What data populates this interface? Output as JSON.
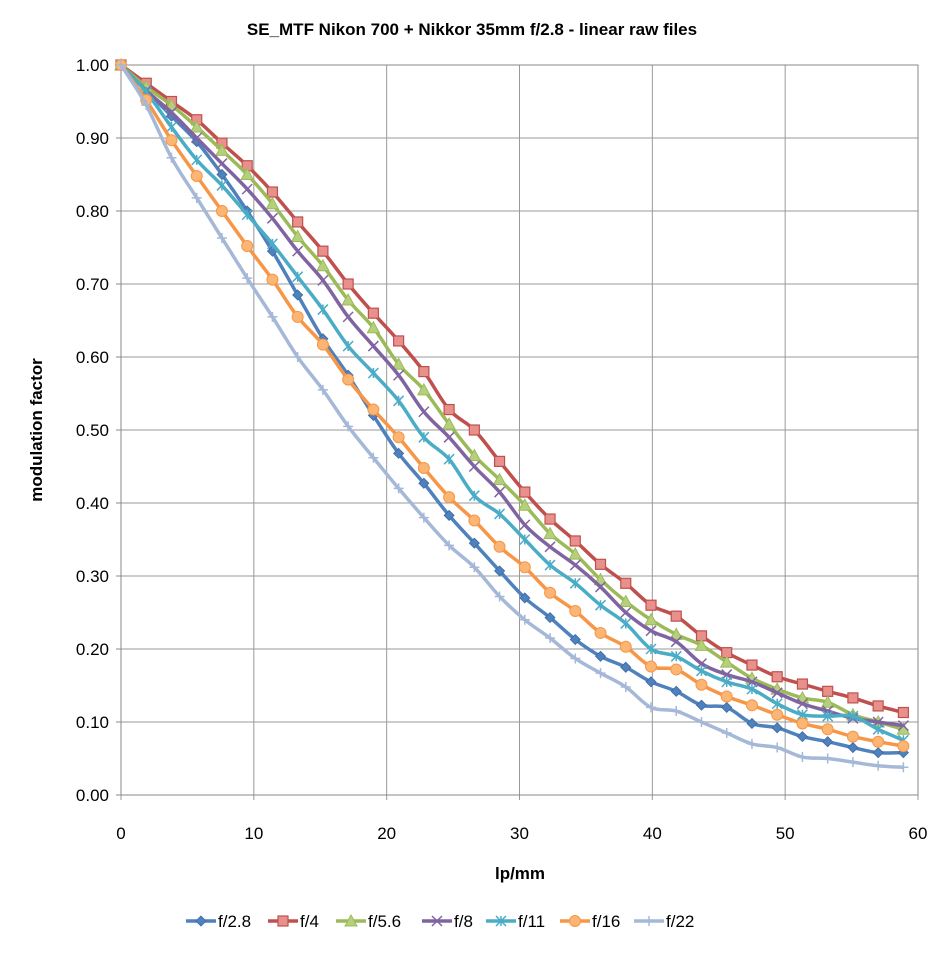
{
  "chart_data": {
    "type": "line",
    "title": "SE_MTF Nikon 700 + Nikkor 35mm f/2.8 - linear raw files",
    "xlabel": "lp/mm",
    "ylabel": "modulation factor",
    "xlim": [
      0,
      60
    ],
    "ylim": [
      0,
      1
    ],
    "xticks": [
      0,
      10,
      20,
      30,
      40,
      50,
      60
    ],
    "xtick_labels": [
      "0",
      "10",
      "20",
      "30",
      "40",
      "50",
      "60"
    ],
    "yticks": [
      0,
      0.1,
      0.2,
      0.3,
      0.4,
      0.5,
      0.6,
      0.7,
      0.8,
      0.9,
      1.0
    ],
    "ytick_labels": [
      "0.00",
      "0.10",
      "0.20",
      "0.30",
      "0.40",
      "0.50",
      "0.60",
      "0.70",
      "0.80",
      "0.90",
      "1.00"
    ],
    "grid": true,
    "legend_position": "bottom",
    "x": [
      0,
      1.9,
      3.8,
      5.7,
      7.6,
      9.5,
      11.4,
      13.3,
      15.2,
      17.1,
      19.0,
      20.9,
      22.8,
      24.7,
      26.6,
      28.5,
      30.4,
      32.3,
      34.2,
      36.1,
      38.0,
      39.9,
      41.8,
      43.7,
      45.6,
      47.5,
      49.4,
      51.3,
      53.2,
      55.1,
      57.0,
      58.9
    ],
    "series": [
      {
        "name": "f/2.8",
        "color": "#4f81bd",
        "marker": "diamond",
        "values": [
          1.0,
          0.965,
          0.93,
          0.895,
          0.85,
          0.8,
          0.745,
          0.685,
          0.625,
          0.575,
          0.52,
          0.468,
          0.427,
          0.383,
          0.345,
          0.307,
          0.27,
          0.243,
          0.213,
          0.19,
          0.175,
          0.155,
          0.142,
          0.123,
          0.12,
          0.098,
          0.092,
          0.08,
          0.073,
          0.065,
          0.058,
          0.058
        ]
      },
      {
        "name": "f/4",
        "color": "#c0504d",
        "marker": "square",
        "values": [
          1.0,
          0.975,
          0.95,
          0.925,
          0.893,
          0.862,
          0.826,
          0.785,
          0.745,
          0.7,
          0.66,
          0.622,
          0.58,
          0.528,
          0.5,
          0.457,
          0.415,
          0.378,
          0.348,
          0.316,
          0.29,
          0.26,
          0.245,
          0.218,
          0.195,
          0.178,
          0.162,
          0.152,
          0.142,
          0.133,
          0.122,
          0.113
        ]
      },
      {
        "name": "f/5.6",
        "color": "#9bbb59",
        "marker": "triangle",
        "values": [
          1.0,
          0.97,
          0.945,
          0.915,
          0.883,
          0.85,
          0.81,
          0.765,
          0.725,
          0.678,
          0.64,
          0.59,
          0.555,
          0.508,
          0.465,
          0.432,
          0.397,
          0.358,
          0.33,
          0.295,
          0.265,
          0.24,
          0.22,
          0.205,
          0.182,
          0.16,
          0.145,
          0.133,
          0.127,
          0.11,
          0.1,
          0.09
        ]
      },
      {
        "name": "f/8",
        "color": "#8064a2",
        "marker": "x",
        "values": [
          1.0,
          0.965,
          0.935,
          0.9,
          0.865,
          0.83,
          0.79,
          0.745,
          0.705,
          0.655,
          0.615,
          0.575,
          0.525,
          0.49,
          0.45,
          0.415,
          0.37,
          0.34,
          0.315,
          0.285,
          0.25,
          0.225,
          0.21,
          0.18,
          0.165,
          0.155,
          0.14,
          0.125,
          0.115,
          0.105,
          0.1,
          0.095
        ]
      },
      {
        "name": "f/11",
        "color": "#4bacc6",
        "marker": "star",
        "values": [
          1.0,
          0.963,
          0.915,
          0.87,
          0.835,
          0.795,
          0.755,
          0.71,
          0.665,
          0.615,
          0.578,
          0.54,
          0.49,
          0.46,
          0.41,
          0.385,
          0.35,
          0.315,
          0.29,
          0.26,
          0.235,
          0.2,
          0.19,
          0.17,
          0.155,
          0.145,
          0.125,
          0.11,
          0.108,
          0.108,
          0.09,
          0.075
        ]
      },
      {
        "name": "f/16",
        "color": "#f79646",
        "marker": "circle",
        "values": [
          1.0,
          0.952,
          0.897,
          0.848,
          0.8,
          0.752,
          0.706,
          0.655,
          0.617,
          0.569,
          0.528,
          0.49,
          0.448,
          0.408,
          0.376,
          0.34,
          0.312,
          0.277,
          0.252,
          0.222,
          0.203,
          0.176,
          0.172,
          0.151,
          0.135,
          0.123,
          0.11,
          0.098,
          0.09,
          0.08,
          0.073,
          0.067
        ]
      },
      {
        "name": "f/22",
        "color": "#a5b8d8",
        "marker": "plus",
        "values": [
          1.0,
          0.945,
          0.873,
          0.818,
          0.763,
          0.708,
          0.655,
          0.6,
          0.555,
          0.505,
          0.462,
          0.42,
          0.38,
          0.342,
          0.312,
          0.272,
          0.24,
          0.215,
          0.187,
          0.167,
          0.148,
          0.12,
          0.115,
          0.1,
          0.085,
          0.07,
          0.065,
          0.052,
          0.05,
          0.045,
          0.04,
          0.038
        ]
      }
    ]
  }
}
